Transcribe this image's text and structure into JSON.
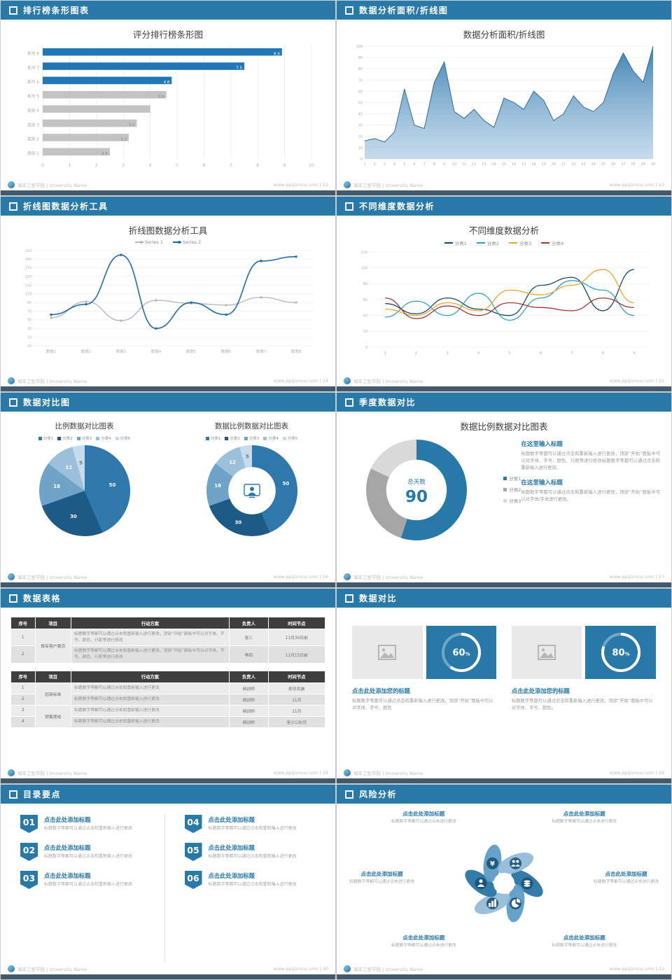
{
  "theme": {
    "header_bg": "#2878a8",
    "accent": "#2878a8",
    "bar_blue": "#2176b5",
    "bar_gray": "#c3c3c3",
    "dark_strip": "#42586b"
  },
  "footer": {
    "org": "海军工程学院 | University Name",
    "site": "www.pptjunius.com",
    "sep": "|"
  },
  "s1": {
    "header": "排行榜条形图表",
    "page": "22",
    "title": "评分排行榜条形图",
    "chart": {
      "type": "barh",
      "categories": [
        "系列 8",
        "系列 7",
        "系列 6",
        "系列 5",
        "类别 4",
        "类别 3",
        "类别 2",
        "类别 1"
      ],
      "values": [
        8.9,
        7.5,
        4.8,
        4.6,
        4,
        3.5,
        3.2,
        2.5
      ],
      "value_labels": [
        "8.9",
        "7.5",
        "4.8",
        "4.6",
        "",
        "3.5",
        "3.2",
        "2.5"
      ],
      "bar_colors": [
        "#2176b5",
        "#2176b5",
        "#2176b5",
        "#c3c3c3",
        "#c3c3c3",
        "#c3c3c3",
        "#c3c3c3",
        "#c3c3c3"
      ],
      "label_colors": [
        "#ffffff",
        "#ffffff",
        "#ffffff",
        "#858585",
        "#858585",
        "#858585",
        "#858585",
        "#858585"
      ],
      "xticks": [
        0,
        1,
        2,
        3,
        4,
        5,
        6,
        7,
        8,
        9,
        10
      ],
      "xmax": 10
    }
  },
  "s2": {
    "header": "数据分析面积/折线图",
    "page": "23",
    "title": "数据分析面积/折线图",
    "chart": {
      "type": "area",
      "x_labels": [
        "1",
        "2",
        "3",
        "4",
        "5",
        "6",
        "7",
        "8",
        "9",
        "10",
        "11",
        "12",
        "13",
        "14",
        "15",
        "16",
        "17",
        "18",
        "19",
        "20",
        "21",
        "22",
        "23",
        "24",
        "25",
        "26",
        "27",
        "28",
        "29",
        "30"
      ],
      "values": [
        16,
        18,
        15,
        24,
        62,
        30,
        27,
        68,
        86,
        42,
        36,
        44,
        34,
        28,
        54,
        50,
        44,
        60,
        52,
        34,
        40,
        56,
        46,
        42,
        50,
        76,
        94,
        78,
        68,
        100
      ],
      "yticks": [
        0,
        10,
        20,
        30,
        40,
        50,
        60,
        70,
        80,
        90,
        100
      ],
      "ymax": 100,
      "line_color": "#24618f",
      "fill_top": "#2e78ac",
      "fill_bottom": "#8cb8d8"
    }
  },
  "s3": {
    "header": "折线图数据分析工具",
    "page": "24",
    "title": "折线图数据分析工具",
    "chart": {
      "type": "line",
      "categories": [
        "数据1",
        "数据2",
        "数据3",
        "数据4",
        "数据5",
        "数据6",
        "数据7",
        "数据8"
      ],
      "yticks": [
        -10,
        10,
        30,
        50,
        70,
        90,
        110,
        130,
        150,
        170,
        190,
        210
      ],
      "ylim": [
        -10,
        210
      ],
      "series": [
        {
          "name": "Series 1",
          "color": "#b8b8b8",
          "values": [
            55,
            92,
            48,
            95,
            88,
            84,
            102,
            90
          ],
          "marker": true,
          "width": 1.4
        },
        {
          "name": "Series 2",
          "color": "#1f6cab",
          "values": [
            62,
            86,
            200,
            30,
            90,
            62,
            186,
            196
          ],
          "marker": true,
          "width": 1.6
        }
      ]
    }
  },
  "s4": {
    "header": "不同维度数据分析",
    "page": "25",
    "title": "不同维度数据分析",
    "chart": {
      "type": "line",
      "categories": [
        "1",
        "2",
        "3",
        "4",
        "5",
        "6",
        "7",
        "8",
        "9"
      ],
      "yticks": [
        0,
        20,
        40,
        60,
        80,
        100,
        120
      ],
      "ylim": [
        0,
        120
      ],
      "series": [
        {
          "name": "分类1",
          "color": "#16486e",
          "values": [
            55,
            42,
            62,
            48,
            40,
            78,
            88,
            46,
            98
          ],
          "width": 1.3
        },
        {
          "name": "分类2",
          "color": "#31a3c4",
          "values": [
            38,
            58,
            40,
            68,
            34,
            62,
            84,
            72,
            40
          ],
          "width": 1.3
        },
        {
          "name": "分类3",
          "color": "#f0a432",
          "values": [
            48,
            40,
            56,
            46,
            72,
            66,
            78,
            98,
            56
          ],
          "width": 1.3
        },
        {
          "name": "分类4",
          "color": "#a6372e",
          "values": [
            62,
            36,
            52,
            40,
            56,
            50,
            46,
            62,
            50
          ],
          "width": 1.3
        }
      ]
    }
  },
  "s5": {
    "header": "数据对比图",
    "page": "26",
    "left": {
      "title": "比例数据对比图表",
      "legend": [
        "分类1",
        "分类2",
        "分类3",
        "分类4",
        "分类5"
      ],
      "chart": {
        "type": "pie",
        "values": [
          50,
          30,
          18,
          12,
          5
        ],
        "labels": [
          "50",
          "30",
          "18",
          "12",
          "5"
        ],
        "colors": [
          "#2e78ac",
          "#1d5a85",
          "#6fa3c8",
          "#9cc0da",
          "#c6dcee"
        ],
        "label_colors": [
          "#ffffff",
          "#ffffff",
          "#ffffff",
          "#ffffff",
          "#777777"
        ]
      }
    },
    "right": {
      "title": "数据比例数据对比图表",
      "legend": [
        "分类1",
        "分类2",
        "分类3",
        "分类4",
        "分类5"
      ],
      "chart": {
        "type": "pie",
        "inner": 0.52,
        "center_icon": "person-monitor-icon",
        "values": [
          50,
          30,
          18,
          12,
          5
        ],
        "labels": [
          "50",
          "30",
          "18",
          "12",
          "5"
        ],
        "colors": [
          "#2e78ac",
          "#1d5a85",
          "#6fa3c8",
          "#9cc0da",
          "#c6dcee"
        ],
        "label_colors": [
          "#ffffff",
          "#ffffff",
          "#ffffff",
          "#ffffff",
          "#777777"
        ]
      }
    }
  },
  "s6": {
    "header": "季度数据对比",
    "page": "27",
    "title": "数据比例数据对比图表",
    "chart": {
      "type": "pie",
      "inner": 0.6,
      "values": [
        55,
        27,
        18
      ],
      "colors": [
        "#2878a8",
        "#a6a6a6",
        "#d9d9d9"
      ],
      "center_top": "总天数",
      "center_big": "90"
    },
    "legend": [
      "分类1",
      "分类2",
      "分类3"
    ],
    "blocks": [
      {
        "title": "在这里输入标题",
        "body": "标题数字等都可以通过点击和重新输入进行更改，顶部“开始”面板中可以对字体、字号、颜色、行距等进行修改标题数字等都可以通过点击和重新输入进行更改。"
      },
      {
        "title": "在这里输入标题",
        "body": "标题数字等都可以通过点击和重新输入进行更改，顶部“开始”面板中可以对字体/字体进行更改。"
      }
    ]
  },
  "s7": {
    "header": "数据表格",
    "page": "28",
    "cols": [
      "序号",
      "项目",
      "行动方案",
      "负责人",
      "时间节点"
    ],
    "t1": {
      "rows": [
        {
          "no": "1",
          "item": "既有客户激活",
          "plan": "标题数字等都可以通过点击和重新输入进行更改，顶部“开始”面板中可以对字体、字号、颜色、行距等进行修改",
          "owner": "张三",
          "time": "11月30日前"
        },
        {
          "no": "2",
          "plan": "标题数字等都可以通过点击和重新输入进行更改，顶部“开始”面板中可以对字体、字号、颜色、行距等进行修改",
          "owner": "李四",
          "time": "11月15日前"
        }
      ]
    },
    "t2": {
      "rows": [
        {
          "no": "1",
          "item": "招商标准",
          "plan": "标题数字等都可以通过点击和重新输入进行更改",
          "owner": "网训师",
          "time": "即日实施"
        },
        {
          "no": "2",
          "plan": "标题数字等都可以通过点击和重新输入进行更改",
          "owner": "网训师",
          "time": "11月"
        },
        {
          "no": "3",
          "item": "销售提成",
          "plan": "标题数字等都可以通过点击和重新输入进行更改",
          "owner": "网训师",
          "time": "11月"
        },
        {
          "no": "4",
          "plan": "标题数字等都可以通过点击和重新输入进行更改",
          "owner": "网训师",
          "time": "至少1次/月"
        }
      ]
    }
  },
  "s8": {
    "header": "数据对比",
    "page": "29",
    "panels": [
      {
        "ring": {
          "type": "ring",
          "pct": 60
        },
        "title": "点击此处添加您的标题",
        "body": "标题数字等都可以通过点击和重新输入进行更改，顶部“开始”面板中可以对字体、字号、颜色"
      },
      {
        "ring": {
          "type": "ring",
          "pct": 80
        },
        "title": "点击此处添加您的标题",
        "body": "标题数字等都可以通过点击和重新输入进行更改，顶部“开始”面板中可以对字体、字号、颜色。"
      }
    ]
  },
  "s9": {
    "header": "目录要点",
    "page": "30",
    "items": [
      {
        "num": "01",
        "title": "点击此处添加标题",
        "body": "标题数字等都可以通过点击和重新输入进行更改"
      },
      {
        "num": "02",
        "title": "点击此处添加标题",
        "body": "标题数字等都可以通过点击和重新输入进行更改"
      },
      {
        "num": "03",
        "title": "点击此处添加标题",
        "body": "标题数字等都可以通过点击和重新输入进行更改"
      },
      {
        "num": "04",
        "title": "点击此处添加标题",
        "body": "标题数字等都可以通过点击和重新输入进行更改"
      },
      {
        "num": "05",
        "title": "点击此处添加标题",
        "body": "标题数字等都可以通过点击和重新输入进行更改"
      },
      {
        "num": "06",
        "title": "点击此处添加标题",
        "body": "标题数字等都可以通过点击和重新输入进行更改"
      }
    ]
  },
  "s10": {
    "header": "风险分析",
    "page": "31",
    "wheel": {
      "type": "petals",
      "icons": [
        "coins-icon",
        "pie-chart-icon",
        "bar-chart-icon",
        "user-icon",
        "yen-icon",
        "people-icon"
      ],
      "colors": [
        "#2a74a4",
        "#5e9cc6",
        "#94bcd8"
      ]
    },
    "labels": [
      {
        "title": "点击此处添加标题",
        "body": "标题数字等都可以通过点击进行更改"
      },
      {
        "title": "点击此处添加标题",
        "body": "标题数字等都可以通过点击进行更改"
      },
      {
        "title": "点击此处添加标题",
        "body": "标题数字等都可以通过点击进行更改"
      },
      {
        "title": "点击此处添加标题",
        "body": "标题数字等都可以通过点击进行更改"
      },
      {
        "title": "点击此处添加标题",
        "body": "标题数字等都可以通过点击进行更改"
      },
      {
        "title": "点击此处添加标题",
        "body": "标题数字等都可以通过点击进行更改"
      }
    ]
  }
}
